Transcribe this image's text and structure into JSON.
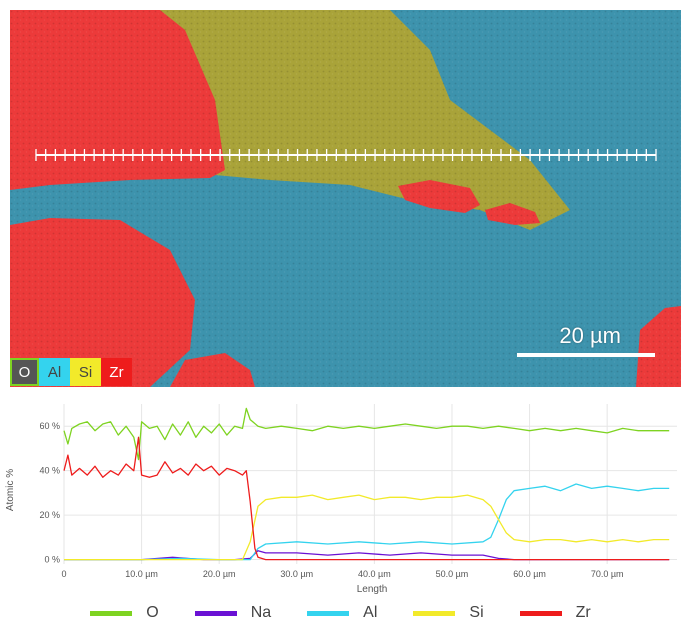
{
  "map": {
    "scalebar_label": "20 µm",
    "element_key": [
      {
        "label": "O",
        "bg": "#555555",
        "fg": "#ffffff",
        "border": "#7ed321"
      },
      {
        "label": "Al",
        "bg": "#34d3ee",
        "fg": "#444444",
        "border": ""
      },
      {
        "label": "Si",
        "bg": "#f2ea2a",
        "fg": "#444444",
        "border": ""
      },
      {
        "label": "Zr",
        "bg": "#ee1c1c",
        "fg": "#ffffff",
        "border": ""
      }
    ],
    "colors": {
      "matrix": "#3d93ad",
      "si_phase": "#a9a339",
      "zr_phase": "#ec3a3a",
      "line": "#ffffff"
    }
  },
  "chart_data": {
    "type": "line",
    "ylabel": "Atomic %",
    "xlabel": "Length",
    "xlim": [
      0,
      79
    ],
    "ylim": [
      -2,
      70
    ],
    "xticks": [
      {
        "value": 0,
        "label": "0"
      },
      {
        "value": 10,
        "label": "10.0 µm"
      },
      {
        "value": 20,
        "label": "20.0 µm"
      },
      {
        "value": 30,
        "label": "30.0 µm"
      },
      {
        "value": 40,
        "label": "40.0 µm"
      },
      {
        "value": 50,
        "label": "50.0 µm"
      },
      {
        "value": 60,
        "label": "60.0 µm"
      },
      {
        "value": 70,
        "label": "70.0 µm"
      }
    ],
    "yticks": [
      {
        "value": 0,
        "label": "0 %"
      },
      {
        "value": 20,
        "label": "20 %"
      },
      {
        "value": 40,
        "label": "40 %"
      },
      {
        "value": 60,
        "label": "60 %"
      }
    ],
    "grid": true,
    "legend_position": "bottom",
    "series": [
      {
        "name": "O",
        "color": "#7ed321",
        "x": [
          0,
          0.5,
          1,
          2,
          3,
          4,
          5,
          6,
          7,
          8,
          9,
          9.6,
          10,
          11,
          12,
          13,
          14,
          15,
          16,
          17,
          18,
          19,
          20,
          21,
          22,
          23,
          23.5,
          24,
          25,
          26,
          28,
          30,
          32,
          34,
          36,
          38,
          40,
          42,
          44,
          46,
          48,
          50,
          52,
          54,
          56,
          58,
          60,
          62,
          64,
          66,
          68,
          70,
          72,
          74,
          76,
          78
        ],
        "y": [
          58,
          52,
          59,
          61,
          62,
          58,
          61,
          62,
          56,
          60,
          55,
          45,
          62,
          59,
          60,
          54,
          61,
          56,
          62,
          55,
          60,
          57,
          61,
          56,
          60,
          59,
          68,
          63,
          60,
          59,
          60,
          59,
          58,
          60,
          59,
          60,
          59,
          60,
          61,
          60,
          59,
          60,
          60,
          59,
          60,
          59,
          58,
          59,
          58,
          59,
          58,
          57,
          59,
          58,
          58,
          58
        ]
      },
      {
        "name": "Na",
        "color": "#6a11d4",
        "x": [
          0,
          5,
          10,
          14,
          18,
          22,
          24,
          25,
          26,
          30,
          34,
          38,
          42,
          46,
          50,
          54,
          56,
          58,
          60,
          65,
          70,
          78
        ],
        "y": [
          0,
          0,
          0,
          1,
          0,
          0,
          0.5,
          4,
          3,
          3,
          2,
          3,
          2,
          3,
          2,
          2,
          0.5,
          0,
          0,
          0,
          0,
          0
        ]
      },
      {
        "name": "Al",
        "color": "#34d3ee",
        "x": [
          0,
          5,
          10,
          15,
          20,
          24,
          25,
          26,
          30,
          34,
          38,
          42,
          46,
          50,
          54,
          55,
          56,
          57,
          58,
          60,
          62,
          64,
          66,
          68,
          70,
          72,
          74,
          76,
          78
        ],
        "y": [
          0,
          0,
          0,
          0.5,
          0,
          0,
          5,
          7,
          8,
          7,
          8,
          7,
          8,
          7,
          8,
          10,
          18,
          27,
          31,
          32,
          33,
          31,
          34,
          32,
          33,
          32,
          31,
          32,
          32
        ]
      },
      {
        "name": "Si",
        "color": "#f2ea2a",
        "x": [
          0,
          5,
          10,
          15,
          20,
          23,
          24,
          25,
          26,
          28,
          30,
          32,
          34,
          36,
          38,
          40,
          42,
          44,
          46,
          48,
          50,
          52,
          54,
          55,
          56,
          57,
          58,
          60,
          62,
          64,
          66,
          68,
          70,
          72,
          74,
          76,
          78
        ],
        "y": [
          0,
          0,
          0,
          0,
          0,
          0,
          8,
          24,
          27,
          28,
          28,
          29,
          27,
          28,
          29,
          27,
          28,
          28,
          27,
          28,
          28,
          29,
          27,
          24,
          18,
          12,
          9,
          8,
          9,
          9,
          8,
          9,
          8,
          9,
          8,
          9,
          9
        ]
      },
      {
        "name": "Zr",
        "color": "#ee1c1c",
        "x": [
          0,
          0.5,
          1,
          2,
          3,
          4,
          5,
          6,
          7,
          8,
          9,
          9.6,
          10,
          11,
          12,
          13,
          14,
          15,
          16,
          17,
          18,
          19,
          20,
          21,
          22,
          23,
          23.5,
          24,
          24.6,
          25,
          26,
          30,
          40,
          50,
          56,
          60,
          70,
          78
        ],
        "y": [
          40,
          47,
          38,
          41,
          38,
          42,
          37,
          40,
          38,
          43,
          40,
          55,
          38,
          37,
          38,
          44,
          39,
          41,
          38,
          43,
          40,
          42,
          38,
          41,
          40,
          38,
          40,
          26,
          5,
          1,
          0,
          0,
          0,
          0,
          0,
          0,
          0,
          0
        ]
      }
    ]
  }
}
